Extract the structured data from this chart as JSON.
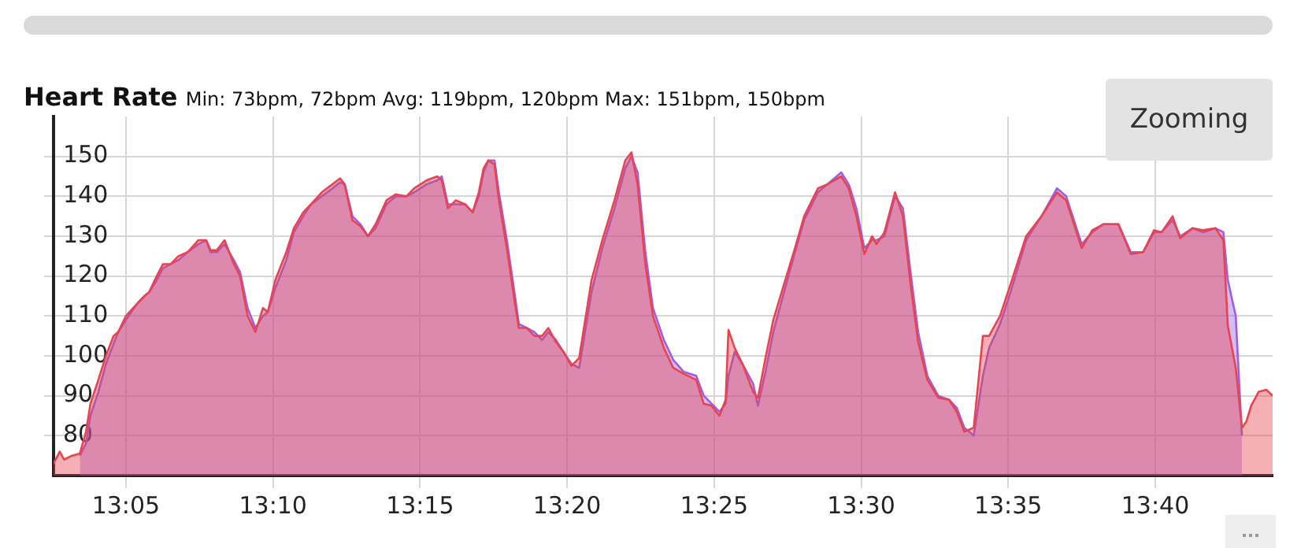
{
  "chart_data": {
    "type": "area",
    "title": "Heart Rate",
    "subtitle": "Min: 73bpm, 72bpm Avg: 119bpm, 120bpm Max: 151bpm, 150bpm",
    "annotations": [
      "Zooming"
    ],
    "x": [
      13.0423,
      13.0458,
      13.0483,
      13.0528,
      13.0572,
      13.0607,
      13.0632,
      13.0677,
      13.072,
      13.0763,
      13.079,
      13.0833,
      13.0895,
      13.0938,
      13.0965,
      13.1008,
      13.1043,
      13.1087,
      13.113,
      13.1183,
      13.1243,
      13.1288,
      13.1313,
      13.1348,
      13.1392,
      13.1445,
      13.148,
      13.1523,
      13.1567,
      13.161,
      13.1637,
      13.168,
      13.1742,
      13.1785,
      13.1838,
      13.1882,
      13.1943,
      13.2003,
      13.2047,
      13.2073,
      13.2117,
      13.2162,
      13.2205,
      13.2248,
      13.231,
      13.2362,
      13.2423,
      13.2467,
      13.2537,
      13.2598,
      13.2623,
      13.2658,
      13.2703,
      13.2755,
      13.2798,
      13.2833,
      13.286,
      13.2887,
      13.2922,
      13.2947,
      13.2992,
      13.3035,
      13.306,
      13.3105,
      13.3148,
      13.3192,
      13.3227,
      13.327,
      13.3313,
      13.3358,
      13.3402,
      13.3472,
      13.3533,
      13.3602,
      13.3663,
      13.3698,
      13.3733,
      13.3777,
      13.382,
      13.3882,
      13.3935,
      13.3995,
      13.4065,
      13.4108,
      13.4153,
      13.4197,
      13.4232,
      13.4248,
      13.4283,
      13.4327,
      13.4388,
      13.4415,
      13.4458,
      13.4502,
      13.4563,
      13.4625,
      13.4677,
      13.4755,
      13.4808,
      13.4887,
      13.493,
      13.4973,
      13.5018,
      13.5062,
      13.5087,
      13.5132,
      13.5192,
      13.5237,
      13.528,
      13.5323,
      13.5375,
      13.5437,
      13.5498,
      13.5542,
      13.5585,
      13.5638,
      13.569,
      13.5725,
      13.5787,
      13.5847,
      13.5935,
      13.6022,
      13.611,
      13.6162,
      13.625,
      13.631,
      13.6372,
      13.6458,
      13.6528,
      13.6598,
      13.666,
      13.6703,
      13.6765,
      13.6808,
      13.6878,
      13.6938,
      13.7008,
      13.7053,
      13.7078,
      13.7123,
      13.7158,
      13.7183,
      13.721,
      13.7253,
      13.7297,
      13.7332
    ],
    "series": [
      {
        "color": "#e8434f",
        "values": [
          73,
          76,
          74,
          75,
          75.5,
          81,
          88,
          94,
          100,
          105,
          106,
          110,
          113,
          115,
          116,
          120,
          123,
          123,
          125,
          126,
          129,
          129,
          126.5,
          126.5,
          129,
          123,
          120,
          110,
          106,
          112,
          111,
          119,
          126,
          132,
          136,
          138,
          141,
          143,
          144.5,
          143,
          134,
          132.5,
          130,
          133,
          139,
          140.5,
          140,
          142,
          144,
          145,
          144,
          137,
          139,
          138,
          136,
          141,
          147,
          149,
          148,
          139,
          127,
          114,
          107,
          107,
          105,
          105,
          107,
          103.5,
          101,
          97.5,
          99.5,
          119,
          129,
          139,
          149,
          151,
          143,
          123,
          110,
          102,
          97,
          95.5,
          94,
          88,
          87.5,
          85,
          89,
          106.5,
          102,
          98,
          91,
          89.5,
          99.5,
          109,
          118,
          127,
          135,
          142,
          143,
          145,
          142,
          135,
          125.5,
          130,
          128,
          131,
          141,
          135,
          118,
          103.5,
          94,
          89.5,
          89,
          86,
          81,
          82,
          105,
          105,
          110,
          118,
          130,
          135,
          141,
          139,
          127,
          131.5,
          133,
          133,
          125.5,
          126,
          131.5,
          131,
          135,
          129.5,
          132,
          131.5,
          132,
          129,
          107.5,
          97,
          82,
          83.5,
          87.5,
          91,
          91.5,
          90
        ]
      },
      {
        "color": "#9b5fe0",
        "values": [
          null,
          null,
          null,
          null,
          75,
          78,
          85,
          91,
          98,
          103,
          106,
          109,
          113,
          115,
          116,
          119,
          122,
          123,
          124,
          126,
          128,
          129,
          126,
          126,
          128,
          124,
          121,
          112,
          107,
          110,
          111,
          117,
          124,
          131,
          135,
          138,
          140,
          142,
          143.5,
          143,
          135,
          133,
          130,
          132,
          138,
          140,
          140,
          141,
          143,
          144,
          145,
          138,
          138,
          138,
          136,
          140,
          146,
          149,
          149,
          141,
          129,
          116,
          108,
          107,
          106,
          104,
          106,
          104,
          101,
          98,
          97,
          116,
          127,
          137,
          147,
          150,
          146,
          126,
          112,
          104,
          99,
          96,
          95,
          90,
          88,
          86,
          88,
          95,
          101,
          98,
          93,
          87.5,
          96,
          106,
          116,
          126,
          134,
          141,
          143,
          146,
          143,
          137,
          127,
          129,
          129,
          130,
          140,
          137,
          121,
          106,
          95,
          90,
          89,
          87,
          82,
          80,
          95,
          102,
          108,
          116,
          129,
          135,
          142,
          140,
          128,
          131,
          133,
          133,
          126,
          126,
          131,
          131,
          134,
          130,
          132,
          131,
          132,
          131,
          119,
          110,
          80,
          null,
          null,
          null,
          null,
          null
        ]
      }
    ],
    "xlim": [
      13.0423,
      13.7332
    ],
    "xticks": [
      {
        "value": 13.0833,
        "label": "13:05"
      },
      {
        "value": 13.1667,
        "label": "13:10"
      },
      {
        "value": 13.25,
        "label": "13:15"
      },
      {
        "value": 13.3333,
        "label": "13:20"
      },
      {
        "value": 13.4167,
        "label": "13:25"
      },
      {
        "value": 13.5,
        "label": "13:30"
      },
      {
        "value": 13.5833,
        "label": "13:35"
      },
      {
        "value": 13.6667,
        "label": "13:40"
      }
    ],
    "ylim": [
      70,
      160
    ],
    "yticks": [
      80,
      90,
      100,
      110,
      120,
      130,
      140,
      150
    ],
    "grid": true
  }
}
